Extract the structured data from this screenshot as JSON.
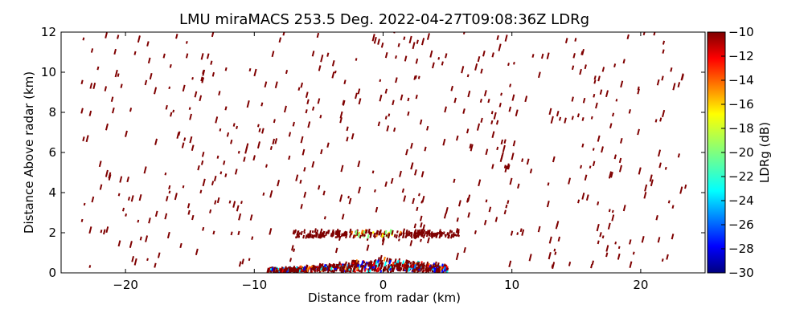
{
  "chart_data": {
    "type": "scatter",
    "title": "LMU miraMACS 253.5 Deg. 2022-04-27T09:08:36Z  LDRg",
    "xlabel": "Distance from radar (km)",
    "ylabel": "Distance Above radar  (km)",
    "xlim": [
      -25,
      25
    ],
    "ylim": [
      0,
      12
    ],
    "xticks": [
      "−20",
      "−10",
      "0",
      "10",
      "20"
    ],
    "xtick_values": [
      -20,
      -10,
      0,
      10,
      20
    ],
    "yticks": [
      "0",
      "2",
      "4",
      "6",
      "8",
      "10",
      "12"
    ],
    "ytick_values": [
      0,
      2,
      4,
      6,
      8,
      10,
      12
    ],
    "grid": false,
    "colorbar": {
      "label": "LDRg (dB)",
      "range": [
        -30,
        -10
      ],
      "ticks": [
        "−10",
        "−12",
        "−14",
        "−16",
        "−18",
        "−20",
        "−22",
        "−24",
        "−26",
        "−28",
        "−30"
      ],
      "tick_values": [
        -10,
        -12,
        -14,
        -16,
        -18,
        -20,
        -22,
        -24,
        -26,
        -28,
        -30
      ],
      "colormap": "jet",
      "colors": [
        "#00007f",
        "#0000ff",
        "#007fff",
        "#00ffff",
        "#7fff7f",
        "#ffff00",
        "#ff7f00",
        "#ff0000",
        "#7f0000"
      ]
    },
    "speckle_value_db": -10,
    "dense_layer_km": {
      "height": [
        1.7,
        2.0
      ],
      "x_extent": [
        -7,
        6
      ]
    },
    "near_ground_km": {
      "height": [
        0,
        0.6
      ],
      "x_extent": [
        -9,
        5
      ]
    }
  }
}
